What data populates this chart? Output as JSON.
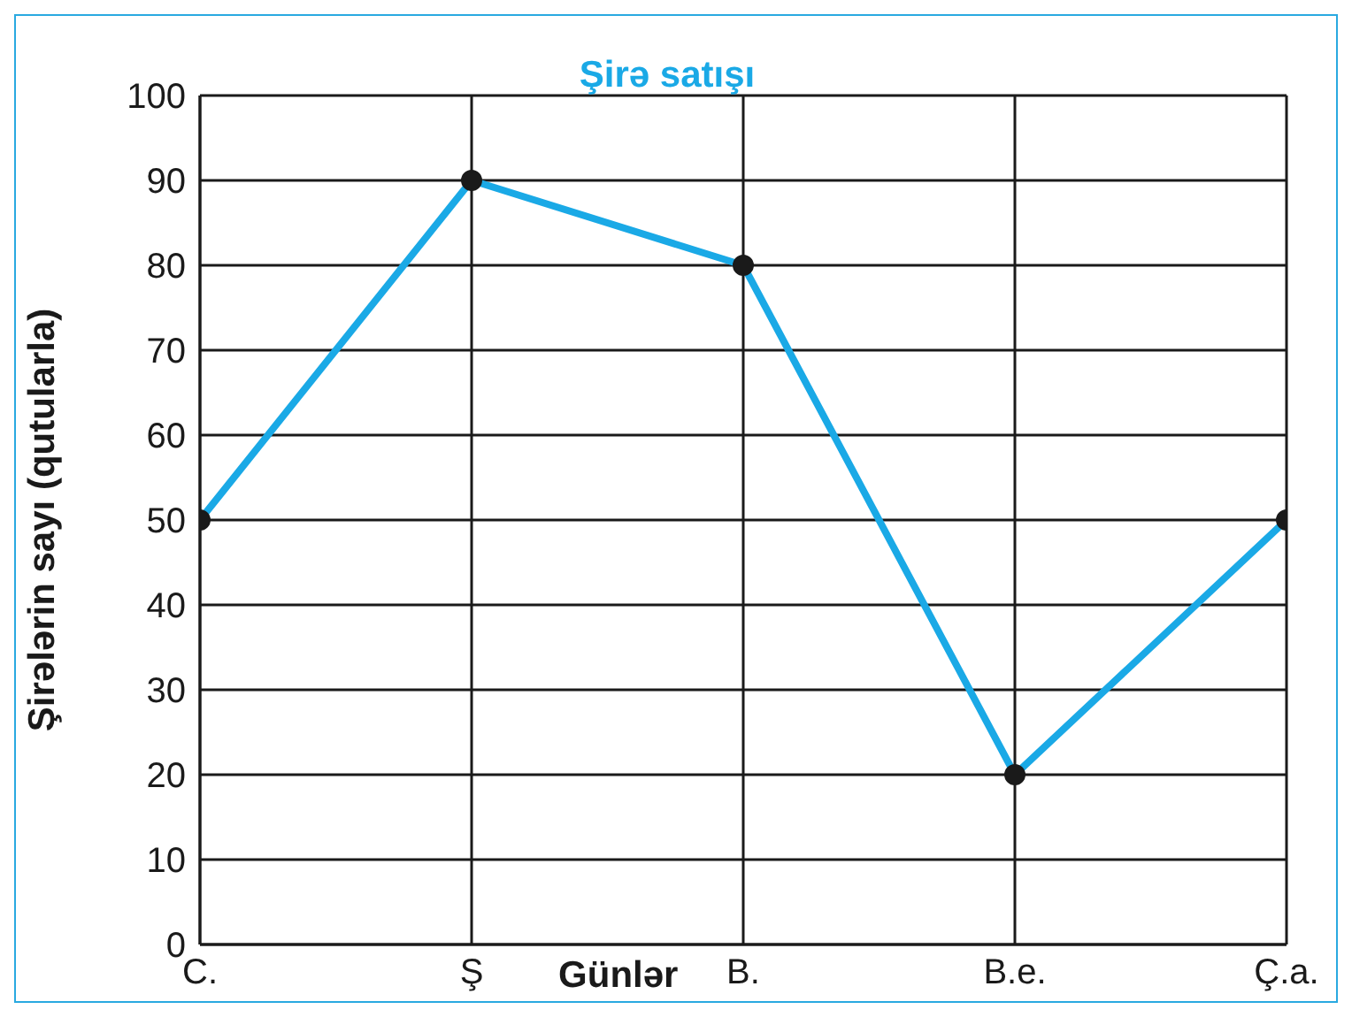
{
  "chart_data": {
    "type": "line",
    "title": "Şirə satışı",
    "xlabel": "Günlər",
    "ylabel": "Şirələrin sayı (qutularla)",
    "categories": [
      "C.",
      "Ş",
      "B.",
      "B.e.",
      "Ç.a."
    ],
    "series": [
      {
        "color": "#1aa9e6",
        "values": [
          50,
          90,
          80,
          20,
          50
        ]
      }
    ],
    "ylim": [
      0,
      100
    ],
    "yticks": [
      0,
      10,
      20,
      30,
      40,
      50,
      60,
      70,
      80,
      90,
      100
    ],
    "grid": true,
    "marker": "circle",
    "line_style": "solid",
    "legend": false
  }
}
